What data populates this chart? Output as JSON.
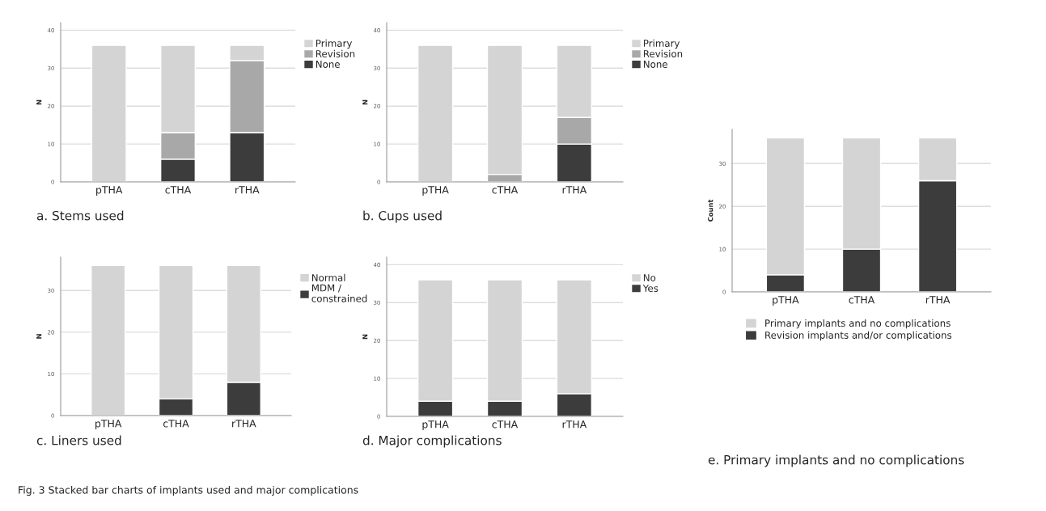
{
  "chart_data": [
    {
      "type": "bar",
      "stacked": true,
      "title": "a. Stems used",
      "ylabel": "N",
      "categories": [
        "pTHA",
        "cTHA",
        "rTHA"
      ],
      "ylim": [
        0,
        42
      ],
      "yticks": [
        0,
        10,
        20,
        30,
        40
      ],
      "grid": "y",
      "legend": "right",
      "series": [
        {
          "name": "None",
          "color": "#3c3c3c",
          "values": [
            0,
            6,
            13
          ]
        },
        {
          "name": "Revision",
          "color": "#a8a8a8",
          "values": [
            0,
            7,
            19
          ]
        },
        {
          "name": "Primary",
          "color": "#d4d4d4",
          "values": [
            36,
            23,
            4
          ]
        }
      ]
    },
    {
      "type": "bar",
      "stacked": true,
      "title": "b. Cups used",
      "ylabel": "N",
      "categories": [
        "pTHA",
        "cTHA",
        "rTHA"
      ],
      "ylim": [
        0,
        42
      ],
      "yticks": [
        0,
        10,
        20,
        30,
        40
      ],
      "grid": "y",
      "legend": "right",
      "series": [
        {
          "name": "None",
          "color": "#3c3c3c",
          "values": [
            0,
            0,
            10
          ]
        },
        {
          "name": "Revision",
          "color": "#a8a8a8",
          "values": [
            0,
            2,
            7
          ]
        },
        {
          "name": "Primary",
          "color": "#d4d4d4",
          "values": [
            36,
            34,
            19
          ]
        }
      ]
    },
    {
      "type": "bar",
      "stacked": true,
      "title": "c. Liners used",
      "ylabel": "N",
      "categories": [
        "pTHA",
        "cTHA",
        "rTHA"
      ],
      "ylim": [
        0,
        38
      ],
      "yticks": [
        0,
        10,
        20,
        30
      ],
      "grid": "y",
      "legend": "right",
      "series": [
        {
          "name": "MDM /\nconstrained",
          "color": "#3c3c3c",
          "values": [
            0,
            4,
            8
          ]
        },
        {
          "name": "Normal",
          "color": "#d4d4d4",
          "values": [
            36,
            32,
            28
          ]
        }
      ]
    },
    {
      "type": "bar",
      "stacked": true,
      "title": "d. Major complications",
      "ylabel": "N",
      "categories": [
        "pTHA",
        "cTHA",
        "rTHA"
      ],
      "ylim": [
        0,
        42
      ],
      "yticks": [
        0,
        10,
        20,
        30,
        40
      ],
      "grid": "y",
      "legend": "right",
      "series": [
        {
          "name": "Yes",
          "color": "#3c3c3c",
          "values": [
            4,
            4,
            6
          ]
        },
        {
          "name": "No",
          "color": "#d4d4d4",
          "values": [
            32,
            32,
            30
          ]
        }
      ]
    },
    {
      "type": "bar",
      "stacked": true,
      "title": "e. Primary implants and no complications",
      "ylabel": "Count",
      "categories": [
        "pTHA",
        "cTHA",
        "rTHA"
      ],
      "ylim": [
        0,
        38
      ],
      "yticks": [
        0,
        10,
        20,
        30
      ],
      "grid": "y",
      "legend": "bottom",
      "annotations": [
        "Fig. 3 Stacked bar charts of implants used and major complications"
      ],
      "series": [
        {
          "name": "Revision implants and/or complications",
          "color": "#3c3c3c",
          "values": [
            4,
            10,
            26
          ]
        },
        {
          "name": "Primary implants and no complications",
          "color": "#d4d4d4",
          "values": [
            32,
            26,
            10
          ]
        }
      ]
    }
  ]
}
